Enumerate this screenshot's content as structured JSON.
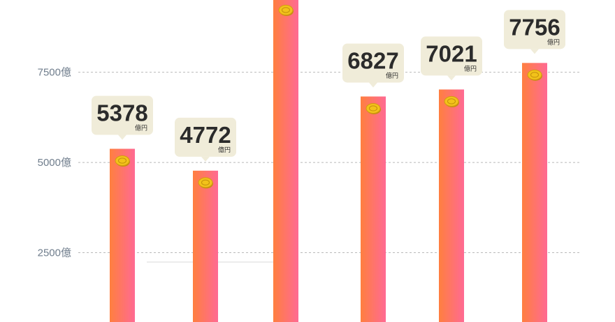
{
  "chart_data": {
    "type": "bar",
    "categories": [
      "",
      "",
      "",
      "",
      "",
      ""
    ],
    "values": [
      5378,
      4772,
      9550,
      6827,
      7021,
      7756
    ],
    "value_labels": [
      "5378",
      "4772",
      "",
      "6827",
      "7021",
      "7756"
    ],
    "unit_label": "億円",
    "yticks": [
      2500,
      5000,
      7500
    ],
    "ytick_labels": [
      "2500億",
      "5000億",
      "7500億"
    ],
    "ylim": [
      580,
      9500
    ],
    "grid": true,
    "bar_gradient": [
      "#ff7f3f",
      "#ff6a93"
    ],
    "callout_color": "#f0ecd9",
    "coin_color": "#f2c21a",
    "grid_color": "#b9b9b9",
    "tick_color": "#6f7d8c"
  }
}
